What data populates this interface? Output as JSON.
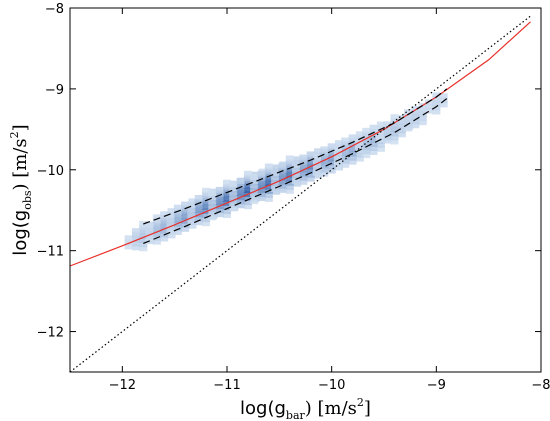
{
  "chart_data": {
    "type": "scatter",
    "title": "",
    "xlabel": {
      "prefix": "log(g",
      "subscript": "bar",
      "suffix": ")  [m/s",
      "superscript": "2",
      "close": "]"
    },
    "ylabel": {
      "prefix": "log(g",
      "subscript": "obs",
      "suffix": ")  [m/s",
      "superscript": "2",
      "close": "]"
    },
    "xlim": [
      -12.5,
      -8
    ],
    "ylim": [
      -12.5,
      -8
    ],
    "xticks": [
      -12,
      -11,
      -10,
      -9,
      -8
    ],
    "yticks": [
      -12,
      -11,
      -10,
      -9,
      -8
    ],
    "xtick_labels": [
      "−12",
      "−11",
      "−10",
      "−9",
      "−8"
    ],
    "ytick_labels": [
      "−12",
      "−11",
      "−10",
      "−9",
      "−8"
    ],
    "grid": false,
    "legend": "none",
    "colors": {
      "fit_line": "#e8302a",
      "unity_line": "#000000",
      "data_band": "#3f6fb5",
      "density_low": "#d6e4f4",
      "density_high": "#2f5ea8",
      "dashed_lines": "#000000"
    },
    "series": [
      {
        "style": "density",
        "x": [
          -11.8,
          -11.6,
          -11.4,
          -11.2,
          -11.0,
          -10.8,
          -10.6,
          -10.4,
          -10.2,
          -10.0,
          -9.8,
          -9.6,
          -9.4,
          -9.2,
          -9.0
        ],
        "y": [
          -10.82,
          -10.7,
          -10.58,
          -10.46,
          -10.36,
          -10.25,
          -10.16,
          -10.06,
          -9.96,
          -9.86,
          -9.75,
          -9.63,
          -9.5,
          -9.35,
          -9.18
        ],
        "density": [
          0.25,
          0.4,
          0.55,
          0.75,
          0.9,
          1.0,
          0.95,
          0.85,
          0.7,
          0.55,
          0.45,
          0.35,
          0.25,
          0.18,
          0.12
        ]
      },
      {
        "style": "line",
        "color_key": "fit_line",
        "x": [
          -12.5,
          -12.0,
          -11.5,
          -11.0,
          -10.5,
          -10.0,
          -9.5,
          -9.0,
          -8.5,
          -8.1
        ],
        "y": [
          -11.19,
          -10.94,
          -10.68,
          -10.41,
          -10.14,
          -9.84,
          -9.5,
          -9.1,
          -8.64,
          -8.17
        ]
      },
      {
        "style": "dotted",
        "color_key": "unity_line",
        "x": [
          -12.5,
          -8.1
        ],
        "y": [
          -12.5,
          -8.1
        ]
      },
      {
        "style": "dashed",
        "color_key": "dashed_lines",
        "x": [
          -11.8,
          -11.4,
          -11.0,
          -10.6,
          -10.2,
          -9.8,
          -9.4,
          -9.0,
          -8.9
        ],
        "y": [
          -10.67,
          -10.48,
          -10.28,
          -10.08,
          -9.88,
          -9.66,
          -9.42,
          -9.1,
          -9.0
        ]
      },
      {
        "style": "dashed",
        "color_key": "dashed_lines",
        "x": [
          -11.8,
          -11.4,
          -11.0,
          -10.6,
          -10.2,
          -9.8,
          -9.4,
          -9.0,
          -8.9
        ],
        "y": [
          -10.91,
          -10.7,
          -10.48,
          -10.26,
          -10.04,
          -9.8,
          -9.54,
          -9.22,
          -9.12
        ]
      }
    ]
  }
}
